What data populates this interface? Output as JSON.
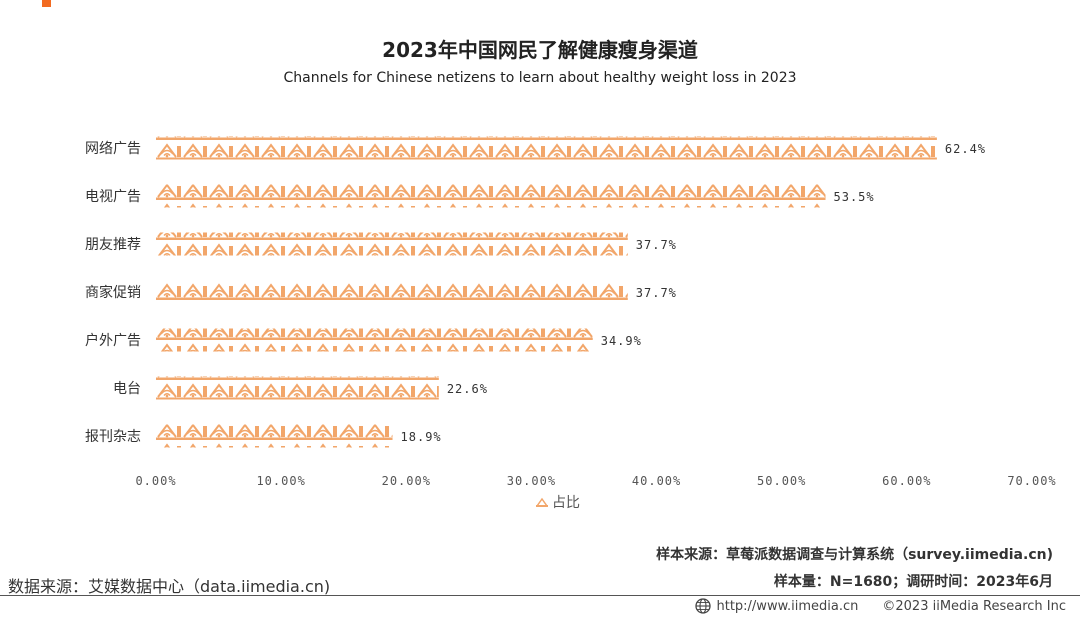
{
  "title": "2023年中国网民了解健康瘦身渠道",
  "subtitle": "Channels for Chinese netizens to learn about healthy weight loss in 2023",
  "colors": {
    "bar": "#f2a66a",
    "accent": "#f26b21",
    "text": "#333333"
  },
  "chart_data": {
    "type": "bar",
    "orientation": "horizontal",
    "categories": [
      "网络广告",
      "电视广告",
      "朋友推荐",
      "商家促销",
      "户外广告",
      "电台",
      "报刊杂志"
    ],
    "series": [
      {
        "name": "占比",
        "values": [
          62.4,
          53.5,
          37.7,
          37.7,
          34.9,
          22.6,
          18.9
        ]
      }
    ],
    "value_labels": [
      "62.4%",
      "53.5%",
      "37.7%",
      "37.7%",
      "34.9%",
      "22.6%",
      "18.9%"
    ],
    "xlim": [
      0,
      70
    ],
    "xticks": [
      "0.00%",
      "10.00%",
      "20.00%",
      "30.00%",
      "40.00%",
      "50.00%",
      "60.00%",
      "70.00%"
    ],
    "grid": false,
    "legend_position": "bottom"
  },
  "legend_label": "占比",
  "source_sample": "样本来源：草莓派数据调查与计算系统（survey.iimedia.cn)",
  "source_size": "样本量：N=1680；调研时间：2023年6月",
  "source_data": "数据来源：艾媒数据中心（data.iimedia.cn)",
  "footer_url": "http://www.iimedia.cn",
  "footer_copyright": "©2023  iiMedia Research  Inc"
}
